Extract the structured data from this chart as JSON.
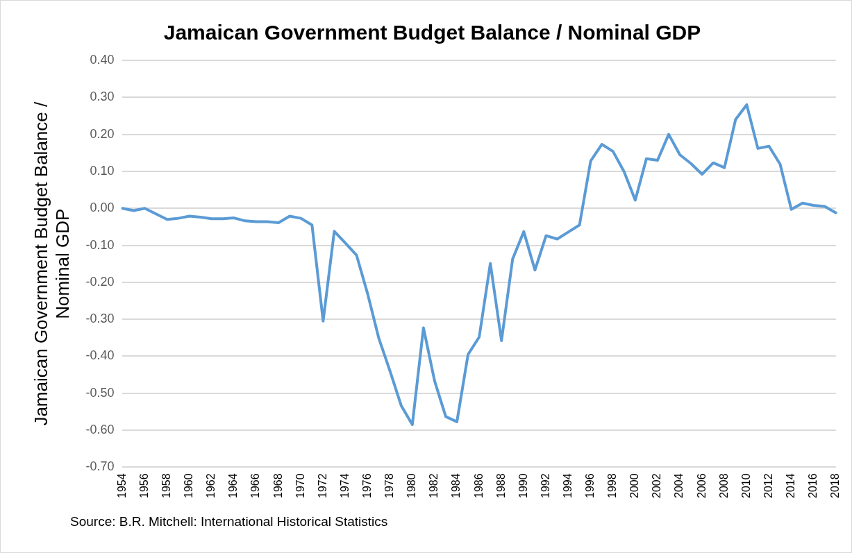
{
  "chart_data": {
    "type": "line",
    "title": "Jamaican Government Budget Balance / Nominal GDP",
    "ylabel": "Jamaican Government Budget Balance / Nominal GDP",
    "annotations": [
      "Source: B.R. Mitchell: International Historical Statistics"
    ],
    "categories": [
      "1954",
      null,
      "1956",
      null,
      "1958",
      null,
      "1960",
      null,
      "1962",
      null,
      "1964",
      null,
      "1966",
      null,
      "1968",
      null,
      "1970",
      null,
      "1972",
      null,
      "1974",
      null,
      "1976",
      null,
      "1978",
      null,
      "1980",
      null,
      "1982",
      null,
      "1984",
      null,
      "1986",
      null,
      "1988",
      null,
      "1990",
      null,
      "1992",
      null,
      "1994",
      null,
      "1996",
      null,
      "1998",
      null,
      "2000",
      null,
      "2002",
      null,
      "2004",
      null,
      "2006",
      null,
      "2008",
      null,
      "2010",
      null,
      "2012",
      null,
      "2014",
      null,
      "2016",
      null,
      "2018"
    ],
    "series": [
      {
        "color": "#5b9bd5",
        "values": [
          0,
          -0.006,
          0,
          -0.015,
          -0.03,
          -0.027,
          -0.021,
          -0.024,
          -0.028,
          -0.028,
          -0.026,
          -0.034,
          -0.036,
          -0.036,
          -0.039,
          -0.021,
          -0.027,
          -0.045,
          -0.305,
          -0.062,
          -0.094,
          -0.127,
          -0.232,
          -0.352,
          -0.44,
          -0.533,
          -0.585,
          -0.323,
          -0.467,
          -0.563,
          -0.577,
          -0.395,
          -0.348,
          -0.149,
          -0.358,
          -0.137,
          -0.063,
          -0.167,
          -0.074,
          -0.083,
          -0.064,
          -0.045,
          0.128,
          0.173,
          0.154,
          0.099,
          0.022,
          0.134,
          0.13,
          0.2,
          0.145,
          0.121,
          0.092,
          0.123,
          0.11,
          0.24,
          0.28,
          0.162,
          0.168,
          0.119,
          -0.003,
          0.014,
          0.008,
          0.005,
          -0.012
        ]
      }
    ],
    "ylim": [
      -0.7,
      0.4
    ],
    "yticks": [
      {
        "value": -0.7,
        "label": "-0.70"
      },
      {
        "value": -0.6,
        "label": "-0.60"
      },
      {
        "value": -0.5,
        "label": "-0.50"
      },
      {
        "value": -0.4,
        "label": "-0.40"
      },
      {
        "value": -0.3,
        "label": "-0.30"
      },
      {
        "value": -0.2,
        "label": "-0.20"
      },
      {
        "value": -0.1,
        "label": "-0.10"
      },
      {
        "value": 0,
        "label": "0.00"
      },
      {
        "value": 0.1,
        "label": "0.10"
      },
      {
        "value": 0.2,
        "label": "0.20"
      },
      {
        "value": 0.3,
        "label": "0.30"
      },
      {
        "value": 0.4,
        "label": "0.40"
      }
    ],
    "grid": "y",
    "legend": false,
    "marker": "none",
    "line_style": "solid"
  }
}
